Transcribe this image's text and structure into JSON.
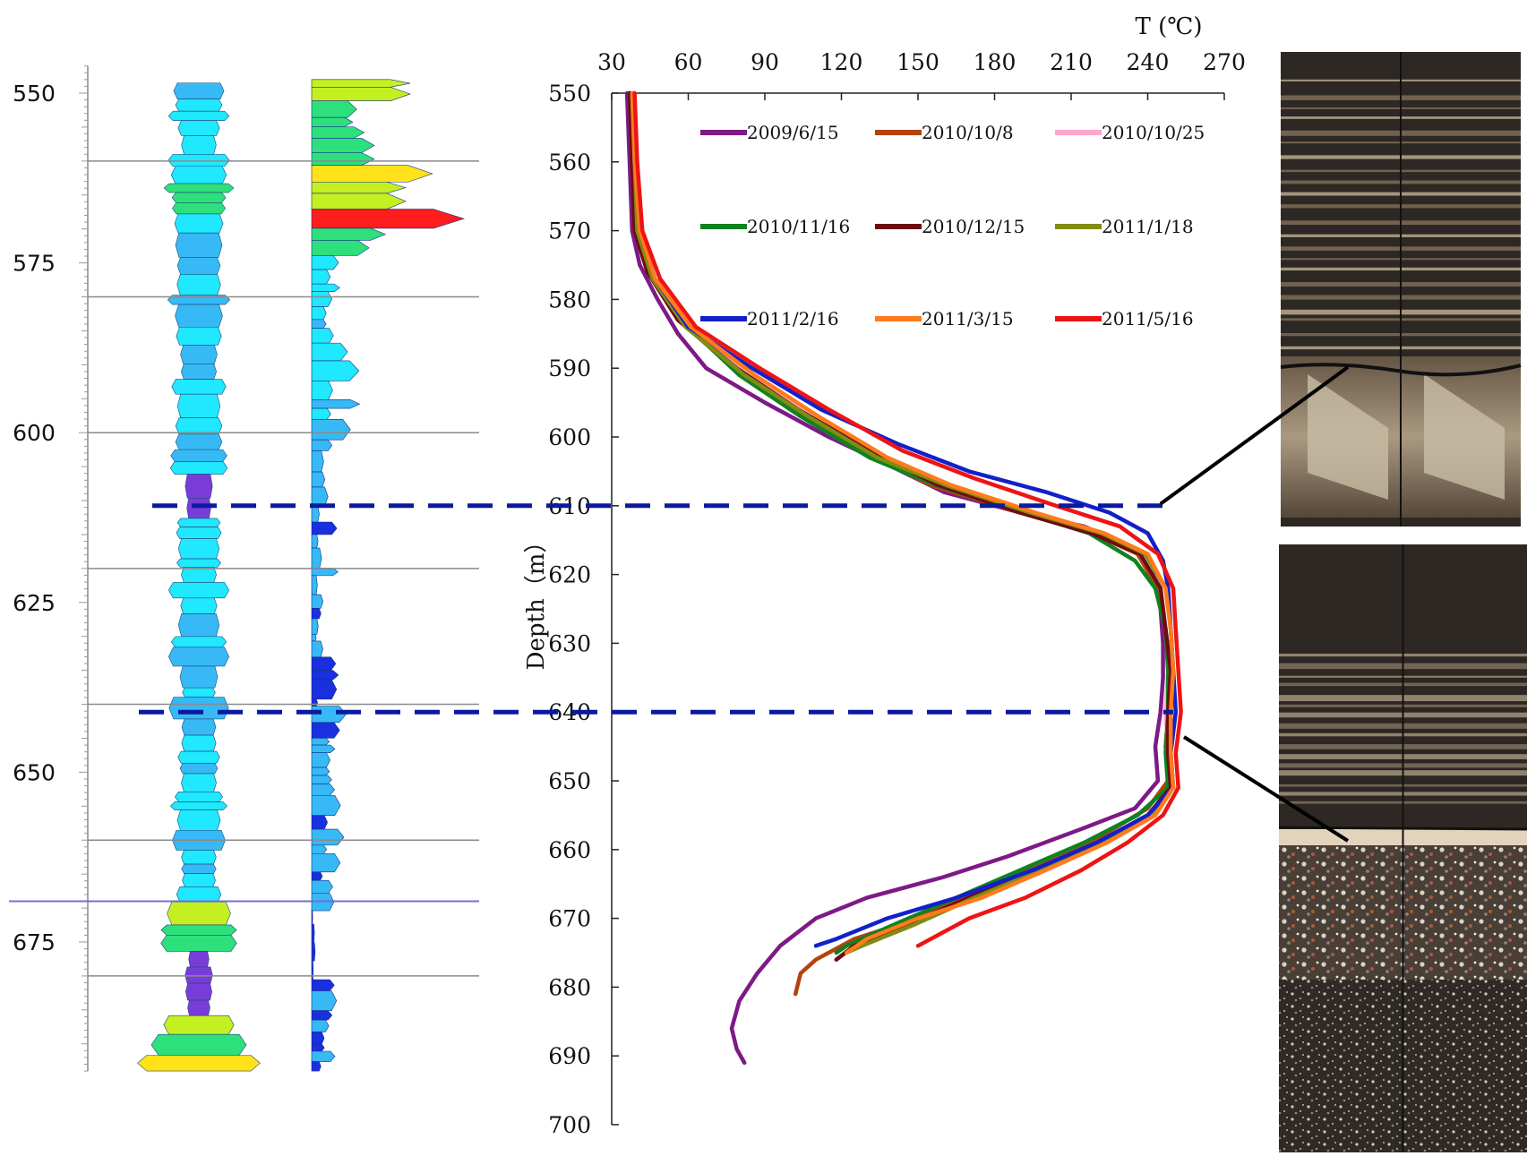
{
  "colors": {
    "marker_line": "#0a1a9e",
    "arrow": "#000000",
    "zone_line": "#8a8a8a",
    "zone_line_blue": "#7070d0",
    "log_palette": [
      "#1a2fe0",
      "#37b9f5",
      "#20e8ff",
      "#2ee07c",
      "#c4f021",
      "#ffe21a",
      "#ff7b00",
      "#ff1c1c",
      "#7a3cd8"
    ]
  },
  "depth_track": {
    "ticks": [
      "550",
      "575",
      "600",
      "625",
      "650",
      "675"
    ]
  },
  "log_tracks": [
    {
      "name": "symmetric log track",
      "shape": "symmetric"
    },
    {
      "name": "one-sided log track",
      "shape": "one-sided"
    }
  ],
  "photos": [
    {
      "name": "upper core photo",
      "depth_link": 610
    },
    {
      "name": "lower core photo",
      "depth_link": 640
    }
  ],
  "chart_data": {
    "type": "line",
    "title": "",
    "xlabel": "T (℃)",
    "ylabel": "Depth（m）",
    "xlim": [
      30,
      270
    ],
    "ylim": [
      700,
      550
    ],
    "x_position": "top",
    "xticks": [
      "30",
      "60",
      "90",
      "120",
      "150",
      "180",
      "210",
      "240",
      "270"
    ],
    "yticks": [
      "550",
      "560",
      "570",
      "580",
      "590",
      "600",
      "610",
      "620",
      "630",
      "640",
      "650",
      "660",
      "670",
      "680",
      "690",
      "700"
    ],
    "grid": false,
    "legend": "top-right, 3 columns",
    "reference_depths": [
      610,
      640
    ],
    "series": [
      {
        "name": "2009/6/15",
        "color": "#7d1a86",
        "points": [
          [
            36,
            550
          ],
          [
            37,
            560
          ],
          [
            38,
            570
          ],
          [
            41,
            575
          ],
          [
            48,
            580
          ],
          [
            56,
            585
          ],
          [
            67,
            590
          ],
          [
            90,
            595
          ],
          [
            115,
            600
          ],
          [
            138,
            604
          ],
          [
            160,
            608
          ],
          [
            190,
            611
          ],
          [
            215,
            613
          ],
          [
            234,
            616
          ],
          [
            242,
            620
          ],
          [
            245,
            625
          ],
          [
            246,
            630
          ],
          [
            246,
            635
          ],
          [
            245,
            640
          ],
          [
            243,
            645
          ],
          [
            244,
            650
          ],
          [
            235,
            654
          ],
          [
            214,
            657
          ],
          [
            185,
            661
          ],
          [
            160,
            664
          ],
          [
            130,
            667
          ],
          [
            110,
            670
          ],
          [
            96,
            674
          ],
          [
            87,
            678
          ],
          [
            80,
            682
          ],
          [
            77,
            686
          ],
          [
            79,
            689
          ],
          [
            82,
            691
          ]
        ]
      },
      {
        "name": "2010/10/8",
        "color": "#b5420f",
        "points": [
          [
            37,
            550
          ],
          [
            38,
            560
          ],
          [
            39,
            570
          ],
          [
            44,
            576
          ],
          [
            56,
            583
          ],
          [
            78,
            590
          ],
          [
            100,
            596
          ],
          [
            128,
            602
          ],
          [
            155,
            607
          ],
          [
            190,
            611
          ],
          [
            218,
            614
          ],
          [
            236,
            617
          ],
          [
            244,
            622
          ],
          [
            247,
            628
          ],
          [
            248,
            634
          ],
          [
            248,
            640
          ],
          [
            247,
            645
          ],
          [
            248,
            650
          ],
          [
            240,
            654
          ],
          [
            222,
            658
          ],
          [
            200,
            662
          ],
          [
            175,
            666
          ],
          [
            150,
            670
          ],
          [
            125,
            673
          ],
          [
            110,
            676
          ],
          [
            104,
            678
          ],
          [
            102,
            681
          ]
        ]
      },
      {
        "name": "2010/10/25",
        "color": "#ffa6cc",
        "points": [
          [
            38,
            550
          ],
          [
            39,
            560
          ],
          [
            40,
            570
          ],
          [
            46,
            577
          ],
          [
            60,
            584
          ],
          [
            83,
            591
          ],
          [
            108,
            597
          ],
          [
            135,
            603
          ],
          [
            160,
            607
          ],
          [
            192,
            611
          ],
          [
            220,
            614
          ],
          [
            237,
            617
          ],
          [
            245,
            622
          ],
          [
            247,
            628
          ],
          [
            248,
            634
          ],
          [
            247,
            640
          ],
          [
            248,
            646
          ],
          [
            249,
            651
          ]
        ]
      },
      {
        "name": "2010/11/16",
        "color": "#10821f",
        "points": [
          [
            37,
            550
          ],
          [
            38,
            560
          ],
          [
            40,
            570
          ],
          [
            45,
            576
          ],
          [
            57,
            583
          ],
          [
            80,
            591
          ],
          [
            104,
            597
          ],
          [
            131,
            603
          ],
          [
            157,
            607
          ],
          [
            191,
            611
          ],
          [
            217,
            614
          ],
          [
            235,
            618
          ],
          [
            243,
            622
          ],
          [
            247,
            628
          ],
          [
            248,
            634
          ],
          [
            248,
            640
          ],
          [
            247,
            646
          ],
          [
            248,
            651
          ],
          [
            236,
            655
          ],
          [
            215,
            659
          ],
          [
            190,
            663
          ],
          [
            165,
            667
          ],
          [
            140,
            671
          ],
          [
            122,
            674
          ],
          [
            118,
            675
          ]
        ]
      },
      {
        "name": "2010/12/15",
        "color": "#6d0c12",
        "points": [
          [
            37,
            550
          ],
          [
            38,
            560
          ],
          [
            39,
            570
          ],
          [
            44,
            576
          ],
          [
            56,
            583
          ],
          [
            79,
            590
          ],
          [
            103,
            596
          ],
          [
            131,
            602
          ],
          [
            158,
            607
          ],
          [
            190,
            611
          ],
          [
            218,
            614
          ],
          [
            237,
            617
          ],
          [
            245,
            622
          ],
          [
            247,
            628
          ],
          [
            249,
            634
          ],
          [
            248,
            640
          ],
          [
            248,
            646
          ],
          [
            249,
            651
          ],
          [
            240,
            655
          ],
          [
            220,
            659
          ],
          [
            196,
            663
          ],
          [
            170,
            667
          ],
          [
            145,
            671
          ],
          [
            125,
            674
          ],
          [
            118,
            676
          ]
        ]
      },
      {
        "name": "2011/1/18",
        "color": "#7f8d14",
        "points": [
          [
            38,
            550
          ],
          [
            39,
            560
          ],
          [
            40,
            570
          ],
          [
            46,
            577
          ],
          [
            59,
            584
          ],
          [
            82,
            591
          ],
          [
            107,
            597
          ],
          [
            134,
            603
          ],
          [
            161,
            607
          ],
          [
            194,
            611
          ],
          [
            222,
            614
          ],
          [
            239,
            617
          ],
          [
            247,
            622
          ],
          [
            249,
            628
          ],
          [
            250,
            634
          ],
          [
            249,
            640
          ],
          [
            249,
            646
          ],
          [
            250,
            651
          ],
          [
            242,
            655
          ],
          [
            222,
            659
          ],
          [
            198,
            663
          ],
          [
            172,
            667
          ],
          [
            148,
            671
          ],
          [
            128,
            674
          ],
          [
            122,
            675
          ]
        ]
      },
      {
        "name": "2011/2/16",
        "color": "#1320c9",
        "points": [
          [
            38,
            550
          ],
          [
            39,
            560
          ],
          [
            41,
            570
          ],
          [
            47,
            577
          ],
          [
            60,
            584
          ],
          [
            85,
            590
          ],
          [
            112,
            596
          ],
          [
            142,
            601
          ],
          [
            170,
            605
          ],
          [
            200,
            608
          ],
          [
            225,
            611
          ],
          [
            240,
            614
          ],
          [
            246,
            618
          ],
          [
            248,
            622
          ],
          [
            249,
            628
          ],
          [
            250,
            634
          ],
          [
            251,
            640
          ],
          [
            249,
            646
          ],
          [
            250,
            651
          ],
          [
            240,
            655
          ],
          [
            220,
            659
          ],
          [
            195,
            663
          ],
          [
            165,
            667
          ],
          [
            138,
            670
          ],
          [
            118,
            673
          ],
          [
            110,
            674
          ]
        ]
      },
      {
        "name": "2011/3/15",
        "color": "#ff7b1c",
        "points": [
          [
            38,
            550
          ],
          [
            39,
            560
          ],
          [
            41,
            570
          ],
          [
            47,
            577
          ],
          [
            61,
            584
          ],
          [
            86,
            591
          ],
          [
            111,
            597
          ],
          [
            138,
            603
          ],
          [
            163,
            607
          ],
          [
            196,
            611
          ],
          [
            223,
            614
          ],
          [
            240,
            617
          ],
          [
            247,
            622
          ],
          [
            249,
            628
          ],
          [
            250,
            634
          ],
          [
            249,
            640
          ],
          [
            249,
            646
          ],
          [
            250,
            651
          ],
          [
            243,
            655
          ],
          [
            224,
            659
          ],
          [
            200,
            663
          ],
          [
            175,
            667
          ],
          [
            150,
            670
          ],
          [
            130,
            673
          ],
          [
            122,
            675
          ]
        ]
      },
      {
        "name": "2011/5/16",
        "color": "#ee1414",
        "points": [
          [
            39,
            550
          ],
          [
            40,
            560
          ],
          [
            42,
            570
          ],
          [
            49,
            577
          ],
          [
            63,
            584
          ],
          [
            88,
            590
          ],
          [
            115,
            596
          ],
          [
            144,
            602
          ],
          [
            172,
            606
          ],
          [
            204,
            610
          ],
          [
            229,
            613
          ],
          [
            244,
            617
          ],
          [
            250,
            622
          ],
          [
            251,
            628
          ],
          [
            252,
            634
          ],
          [
            253,
            640
          ],
          [
            251,
            646
          ],
          [
            252,
            651
          ],
          [
            246,
            655
          ],
          [
            232,
            659
          ],
          [
            214,
            663
          ],
          [
            192,
            667
          ],
          [
            170,
            670
          ],
          [
            150,
            674
          ]
        ]
      }
    ]
  }
}
